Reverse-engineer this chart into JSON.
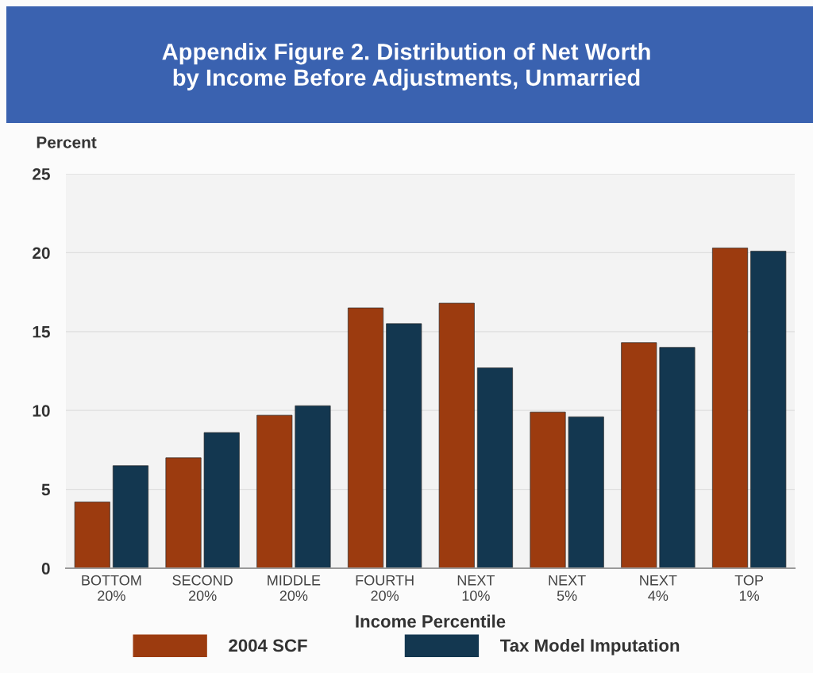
{
  "chart_data": {
    "type": "bar",
    "title": "Appendix Figure 2. Distribution of Net Worth\nby Income Before Adjustments, Unmarried",
    "categories": [
      "BOTTOM\n20%",
      "SECOND\n20%",
      "MIDDLE\n20%",
      "FOURTH\n20%",
      "NEXT\n10%",
      "NEXT\n5%",
      "NEXT\n4%",
      "TOP\n1%"
    ],
    "xlabel": "Income Percentile",
    "ylabel": "Percent",
    "ylim": [
      0,
      25
    ],
    "yticks": [
      0,
      5,
      10,
      15,
      20,
      25
    ],
    "grid": "y",
    "legend": "bottom",
    "series": [
      {
        "name": "2004 SCF",
        "color": "#9c3b0f",
        "values": [
          4.2,
          7.0,
          9.7,
          16.5,
          16.8,
          9.9,
          14.3,
          20.3
        ]
      },
      {
        "name": "Tax Model Imputation",
        "color": "#133750",
        "values": [
          6.5,
          8.6,
          10.3,
          15.5,
          12.7,
          9.6,
          14.0,
          20.1
        ]
      }
    ]
  }
}
